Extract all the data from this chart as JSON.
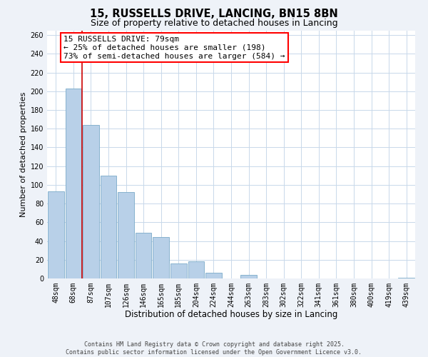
{
  "title": "15, RUSSELLS DRIVE, LANCING, BN15 8BN",
  "subtitle": "Size of property relative to detached houses in Lancing",
  "xlabel": "Distribution of detached houses by size in Lancing",
  "ylabel": "Number of detached properties",
  "bar_labels": [
    "48sqm",
    "68sqm",
    "87sqm",
    "107sqm",
    "126sqm",
    "146sqm",
    "165sqm",
    "185sqm",
    "204sqm",
    "224sqm",
    "244sqm",
    "263sqm",
    "283sqm",
    "302sqm",
    "322sqm",
    "341sqm",
    "361sqm",
    "380sqm",
    "400sqm",
    "419sqm",
    "439sqm"
  ],
  "bar_values": [
    93,
    203,
    164,
    110,
    92,
    49,
    44,
    16,
    18,
    6,
    0,
    4,
    0,
    0,
    0,
    0,
    0,
    0,
    0,
    0,
    1
  ],
  "bar_color": "#b8d0e8",
  "bar_edge_color": "#7aaac8",
  "ylim": [
    0,
    265
  ],
  "yticks": [
    0,
    20,
    40,
    60,
    80,
    100,
    120,
    140,
    160,
    180,
    200,
    220,
    240,
    260
  ],
  "vline_color": "#cc0000",
  "annotation_box_text": "15 RUSSELLS DRIVE: 79sqm\n← 25% of detached houses are smaller (198)\n73% of semi-detached houses are larger (584) →",
  "footer_text": "Contains HM Land Registry data © Crown copyright and database right 2025.\nContains public sector information licensed under the Open Government Licence v3.0.",
  "background_color": "#eef2f8",
  "plot_background_color": "#ffffff",
  "grid_color": "#c8d8ea",
  "title_fontsize": 10.5,
  "subtitle_fontsize": 9,
  "xlabel_fontsize": 8.5,
  "ylabel_fontsize": 8,
  "tick_fontsize": 7,
  "footer_fontsize": 6,
  "ann_fontsize": 8
}
